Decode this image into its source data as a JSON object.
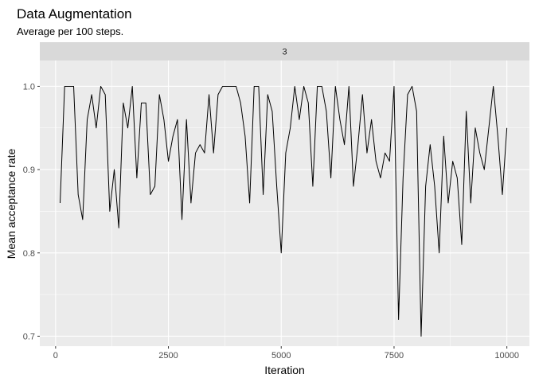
{
  "chart_data": {
    "type": "line",
    "title": "Data Augmentation",
    "subtitle": "Average per 100 steps.",
    "facet_label": "3",
    "xlabel": "Iteration",
    "ylabel": "Mean acceptance rate",
    "xlim": [
      -350,
      10500
    ],
    "ylim": [
      0.688,
      1.031
    ],
    "x_ticks": [
      0,
      2500,
      5000,
      7500,
      10000
    ],
    "x_tick_labels": [
      "0",
      "2500",
      "5000",
      "7500",
      "10000"
    ],
    "y_ticks": [
      0.7,
      0.8,
      0.9,
      1.0
    ],
    "y_tick_labels": [
      "0.7",
      "0.8",
      "0.9",
      "1.0"
    ],
    "grid": true,
    "colors": {
      "panel": "#ebebeb",
      "strip": "#d9d9d9",
      "grid": "#ffffff",
      "line": "#000000"
    },
    "series": [
      {
        "x": [
          100,
          200,
          300,
          400,
          500,
          600,
          700,
          800,
          900,
          1000,
          1100,
          1200,
          1300,
          1400,
          1500,
          1600,
          1700,
          1800,
          1900,
          2000,
          2100,
          2200,
          2300,
          2400,
          2500,
          2600,
          2700,
          2800,
          2900,
          3000,
          3100,
          3200,
          3300,
          3400,
          3500,
          3600,
          3700,
          3800,
          3900,
          4000,
          4100,
          4200,
          4300,
          4400,
          4500,
          4600,
          4700,
          4800,
          4900,
          5000,
          5100,
          5200,
          5300,
          5400,
          5500,
          5600,
          5700,
          5800,
          5900,
          6000,
          6100,
          6200,
          6300,
          6400,
          6500,
          6600,
          6700,
          6800,
          6900,
          7000,
          7100,
          7200,
          7300,
          7400,
          7500,
          7600,
          7700,
          7800,
          7900,
          8000,
          8100,
          8200,
          8300,
          8400,
          8500,
          8600,
          8700,
          8800,
          8900,
          9000,
          9100,
          9200,
          9300,
          9400,
          9500,
          9600,
          9700,
          9800,
          9900,
          10000
        ],
        "y": [
          0.86,
          1.0,
          1.0,
          1.0,
          0.87,
          0.84,
          0.96,
          0.99,
          0.95,
          1.0,
          0.99,
          0.85,
          0.9,
          0.83,
          0.98,
          0.95,
          1.0,
          0.89,
          0.98,
          0.98,
          0.87,
          0.88,
          0.99,
          0.96,
          0.91,
          0.94,
          0.96,
          0.84,
          0.96,
          0.86,
          0.92,
          0.93,
          0.92,
          0.99,
          0.92,
          0.99,
          1.0,
          1.0,
          1.0,
          1.0,
          0.98,
          0.94,
          0.86,
          1.0,
          1.0,
          0.87,
          0.99,
          0.97,
          0.88,
          0.8,
          0.92,
          0.95,
          1.0,
          0.96,
          1.0,
          0.98,
          0.88,
          1.0,
          1.0,
          0.97,
          0.89,
          1.0,
          0.96,
          0.93,
          1.0,
          0.88,
          0.93,
          0.99,
          0.92,
          0.96,
          0.91,
          0.89,
          0.92,
          0.91,
          1.0,
          0.72,
          0.89,
          0.99,
          1.0,
          0.97,
          0.7,
          0.88,
          0.93,
          0.88,
          0.8,
          0.94,
          0.86,
          0.91,
          0.89,
          0.81,
          0.97,
          0.86,
          0.95,
          0.92,
          0.9,
          0.95,
          1.0,
          0.94,
          0.87,
          0.95
        ]
      }
    ]
  }
}
